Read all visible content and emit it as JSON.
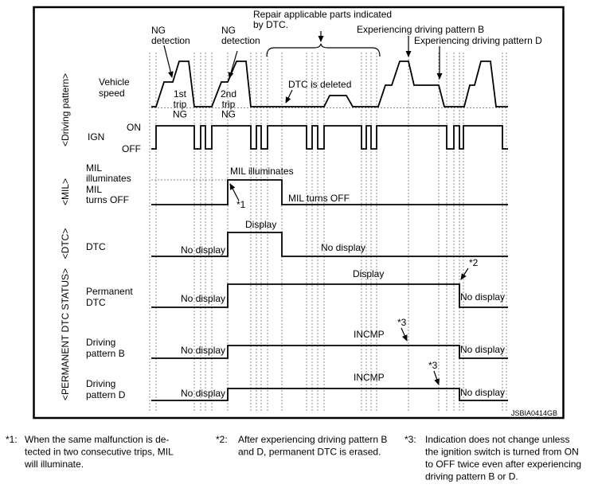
{
  "colors": {
    "ink": "#000000",
    "grid": "#8e8e8e",
    "background": "#ffffff"
  },
  "watermark": "JSBIA0414GB",
  "axis_groups": {
    "driving_pattern": "<Driving pattern>",
    "mil": "<MIL>",
    "dtc": "<DTC>",
    "permanent_dtc_status": "<PERMANENT DTC STATUS>"
  },
  "row_labels": {
    "vehicle_speed_1": "Vehicle",
    "vehicle_speed_2": "speed",
    "ign": "IGN",
    "ign_on": "ON",
    "ign_off": "OFF",
    "mil_1": "MIL",
    "mil_2": "illuminates",
    "mil_3": "MIL",
    "mil_4": "turns OFF",
    "dtc": "DTC",
    "permanent_1": "Permanent",
    "permanent_2": "DTC",
    "pattern_b_1": "Driving",
    "pattern_b_2": "pattern B",
    "pattern_d_1": "Driving",
    "pattern_d_2": "pattern D"
  },
  "annotations": {
    "ng1_1": "NG",
    "ng1_2": "detection",
    "ng2_1": "NG",
    "ng2_2": "detection",
    "repair_1": "Repair applicable parts indicated",
    "repair_2": "by DTC.",
    "experiencing_b": "Experiencing driving pattern B",
    "experiencing_d": "Experiencing driving pattern D",
    "dtc_deleted": "DTC is deleted",
    "trip1_1": "1st",
    "trip1_2": "trip",
    "trip1_3": "NG",
    "trip2_1": "2nd",
    "trip2_2": "trip",
    "trip2_3": "NG",
    "mil_illuminates": "MIL illuminates",
    "mil_turns_off": "MIL turns OFF",
    "note1": "*1",
    "note2": "*2",
    "note3_b": "*3",
    "note3_d": "*3"
  },
  "traces": {
    "dtc": {
      "left": "No display",
      "mid": "Display",
      "right": "No display"
    },
    "permanent": {
      "left": "No display",
      "mid": "Display",
      "right": "No display"
    },
    "pattern_b": {
      "left": "No display",
      "mid": "INCMP",
      "right": "No display"
    },
    "pattern_d": {
      "left": "No display",
      "mid": "INCMP",
      "right": "No display"
    }
  },
  "footnotes": [
    {
      "marker": "*1:",
      "lines": [
        "When the same malfunction is de-",
        "tected in two consecutive trips, MIL",
        "will illuminate."
      ]
    },
    {
      "marker": "*2:",
      "lines": [
        "After experiencing driving pattern B",
        "and D, permanent DTC is erased."
      ]
    },
    {
      "marker": "*3:",
      "lines": [
        "Indication does not change unless",
        "the ignition switch is turned from ON",
        "to OFF twice even after experiencing",
        "driving pattern B or D."
      ]
    }
  ]
}
